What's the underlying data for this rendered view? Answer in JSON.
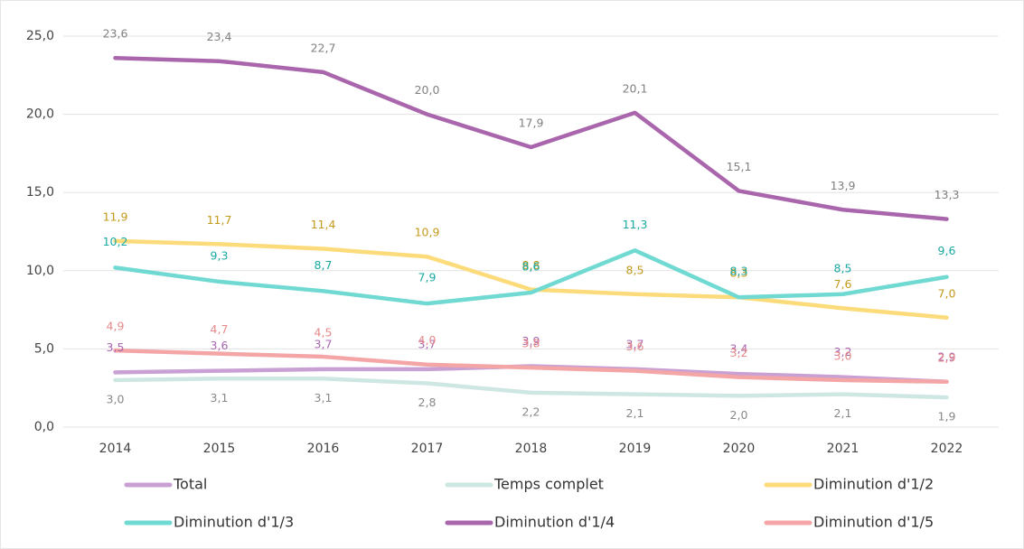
{
  "chart_data": {
    "type": "line",
    "categories": [
      "2014",
      "2015",
      "2016",
      "2017",
      "2018",
      "2019",
      "2020",
      "2021",
      "2022"
    ],
    "ylim": [
      0,
      25
    ],
    "yticks": [
      {
        "value": 0,
        "label": "0,0"
      },
      {
        "value": 5,
        "label": "5,0"
      },
      {
        "value": 10,
        "label": "10,0"
      },
      {
        "value": 15,
        "label": "15,0"
      },
      {
        "value": 20,
        "label": "20,0"
      },
      {
        "value": 25,
        "label": "25,0"
      }
    ],
    "grid": true,
    "legend": "bottom",
    "series": [
      {
        "name": "Total",
        "color": "#c9a0d3",
        "label_color": "#a866b0",
        "values": [
          3.5,
          3.6,
          3.7,
          3.7,
          3.9,
          3.7,
          3.4,
          3.2,
          2.9
        ],
        "value_labels": [
          "3,5",
          "3,6",
          "3,7",
          "3,7",
          "3,9",
          "3,7",
          "3,4",
          "3,2",
          "2,9"
        ]
      },
      {
        "name": "Temps complet",
        "color": "#cfe7e2",
        "label_color": "#888888",
        "values": [
          3.0,
          3.1,
          3.1,
          2.8,
          2.2,
          2.1,
          2.0,
          2.1,
          1.9
        ],
        "value_labels": [
          "3,0",
          "3,1",
          "3,1",
          "2,8",
          "2,2",
          "2,1",
          "2,0",
          "2,1",
          "1,9"
        ]
      },
      {
        "name": "Diminution d'1/2",
        "color": "#fbdb7a",
        "label_color": "#c49a1c",
        "values": [
          11.9,
          11.7,
          11.4,
          10.9,
          8.8,
          8.5,
          8.3,
          7.6,
          7.0
        ],
        "value_labels": [
          "11,9",
          "11,7",
          "11,4",
          "10,9",
          "8,8",
          "8,5",
          "8,3",
          "7,6",
          "7,0"
        ]
      },
      {
        "name": "Diminution d'1/3",
        "color": "#6fd9d2",
        "label_color": "#1aa9a2",
        "values": [
          10.2,
          9.3,
          8.7,
          7.9,
          8.6,
          11.3,
          8.3,
          8.5,
          9.6
        ],
        "value_labels": [
          "10,2",
          "9,3",
          "8,7",
          "7,9",
          "8,6",
          "11,3",
          "8,3",
          "8,5",
          "9,6"
        ]
      },
      {
        "name": "Diminution d'1/4",
        "color": "#aa66ac",
        "label_color": "#808080",
        "values": [
          23.6,
          23.4,
          22.7,
          20.0,
          17.9,
          20.1,
          15.1,
          13.9,
          13.3
        ],
        "value_labels": [
          "23,6",
          "23,4",
          "22,7",
          "20,0",
          "17,9",
          "20,1",
          "15,1",
          "13,9",
          "13,3"
        ]
      },
      {
        "name": "Diminution d'1/5",
        "color": "#f4a6a6",
        "label_color": "#e88a8a",
        "values": [
          4.9,
          4.7,
          4.5,
          4.0,
          3.8,
          3.6,
          3.2,
          3.0,
          2.9
        ],
        "value_labels": [
          "4,9",
          "4,7",
          "4,5",
          "4,0",
          "3,8",
          "3,6",
          "3,2",
          "3,0",
          "2,9"
        ]
      }
    ]
  }
}
